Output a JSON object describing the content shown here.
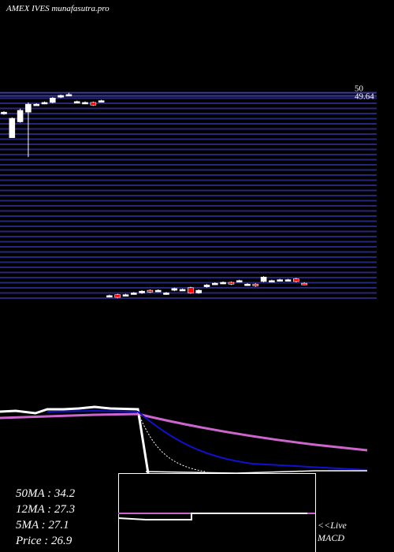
{
  "chart_data": {
    "type": "candlestick",
    "title": "AMEX IVES munafasutra.pro",
    "ylim": [
      26,
      50.5
    ],
    "yticks": [
      50,
      49.64
    ],
    "up_color": "#ffffff",
    "down_color": "#ff0000",
    "grid_color": "#26267a",
    "open": [
      47.6,
      44.9,
      46.7,
      47.8,
      48.6,
      48.8,
      48.9,
      49.5,
      49.8,
      49.0,
      48.9,
      48.9,
      49.1,
      26.9,
      27.1,
      27.0,
      27.2,
      27.3,
      27.6,
      27.5,
      27.2,
      27.6,
      27.7,
      27.9,
      27.3,
      28.0,
      28.3,
      28.4,
      28.5,
      28.6,
      28.2,
      28.3,
      28.6,
      28.6,
      28.7,
      28.7,
      28.9,
      28.4
    ],
    "high": [
      47.9,
      47.2,
      48.2,
      48.9,
      48.8,
      49.0,
      49.5,
      49.8,
      50.0,
      49.1,
      49.0,
      49.0,
      49.2,
      27.1,
      27.2,
      27.2,
      27.4,
      27.6,
      27.7,
      27.7,
      27.4,
      27.9,
      27.8,
      28.0,
      27.7,
      28.3,
      28.5,
      28.6,
      28.6,
      28.8,
      28.4,
      28.4,
      29.2,
      28.8,
      28.9,
      28.9,
      29.0,
      28.5
    ],
    "low": [
      47.5,
      44.9,
      46.6,
      42.7,
      48.5,
      48.7,
      48.8,
      49.4,
      49.7,
      48.9,
      48.8,
      48.5,
      49.0,
      26.8,
      26.7,
      26.9,
      27.1,
      27.2,
      27.3,
      27.4,
      27.1,
      27.5,
      27.6,
      27.2,
      27.2,
      27.9,
      28.2,
      28.3,
      28.2,
      28.5,
      28.1,
      28.0,
      28.5,
      28.5,
      28.6,
      28.6,
      28.5,
      28.2
    ],
    "close": [
      47.8,
      47.1,
      48.0,
      48.7,
      48.7,
      48.9,
      49.4,
      49.7,
      49.8,
      49.0,
      48.9,
      48.6,
      49.1,
      27.0,
      26.8,
      27.1,
      27.3,
      27.5,
      27.4,
      27.6,
      27.3,
      27.8,
      27.7,
      27.3,
      27.6,
      28.2,
      28.4,
      28.5,
      28.3,
      28.7,
      28.3,
      28.1,
      29.1,
      28.7,
      28.8,
      28.8,
      28.6,
      28.3
    ],
    "readouts": [
      "50MA : 34.2",
      "12MA : 27.3",
      "5MA : 27.1",
      "Price   : 26.9"
    ],
    "live_label": "<<Live",
    "macd_label": "MACD"
  }
}
